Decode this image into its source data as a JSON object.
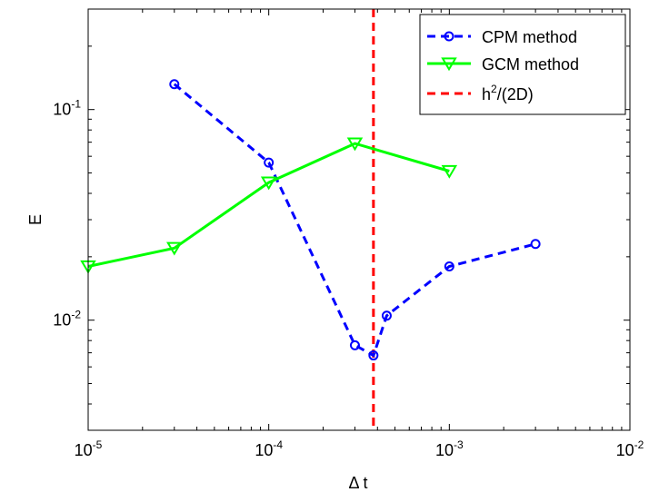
{
  "chart_data": {
    "type": "line",
    "xscale": "log",
    "yscale": "log",
    "xlim": [
      1e-05,
      0.01
    ],
    "ylim": [
      0.003,
      0.3
    ],
    "xlabel": "Δ t",
    "ylabel": "E",
    "xticks": [
      {
        "value": 1e-05,
        "base": "10",
        "exp": "-5"
      },
      {
        "value": 0.0001,
        "base": "10",
        "exp": "-4"
      },
      {
        "value": 0.001,
        "base": "10",
        "exp": "-3"
      },
      {
        "value": 0.01,
        "base": "10",
        "exp": "-2"
      }
    ],
    "yticks": [
      {
        "value": 0.01,
        "base": "10",
        "exp": "-2"
      },
      {
        "value": 0.1,
        "base": "10",
        "exp": "-1"
      }
    ],
    "legend_position": "top-right",
    "series": [
      {
        "name": "CPM method",
        "color": "#0000ff",
        "line_style": "dashed",
        "marker": "circle",
        "x": [
          3e-05,
          0.0001,
          0.0003,
          0.00038,
          0.00045,
          0.001,
          0.003
        ],
        "y": [
          0.132,
          0.056,
          0.0076,
          0.0068,
          0.0105,
          0.018,
          0.023
        ]
      },
      {
        "name": "GCM method",
        "color": "#00ff00",
        "line_style": "solid",
        "marker": "triangle-down",
        "x": [
          1e-05,
          3e-05,
          0.0001,
          0.0003,
          0.001
        ],
        "y": [
          0.018,
          0.022,
          0.045,
          0.069,
          0.051
        ]
      }
    ],
    "vline": {
      "name_base": "h",
      "name_exp": "2",
      "name_rest": "/(2D)",
      "x": 0.00038,
      "color": "#ff0000",
      "line_style": "dashed"
    }
  }
}
